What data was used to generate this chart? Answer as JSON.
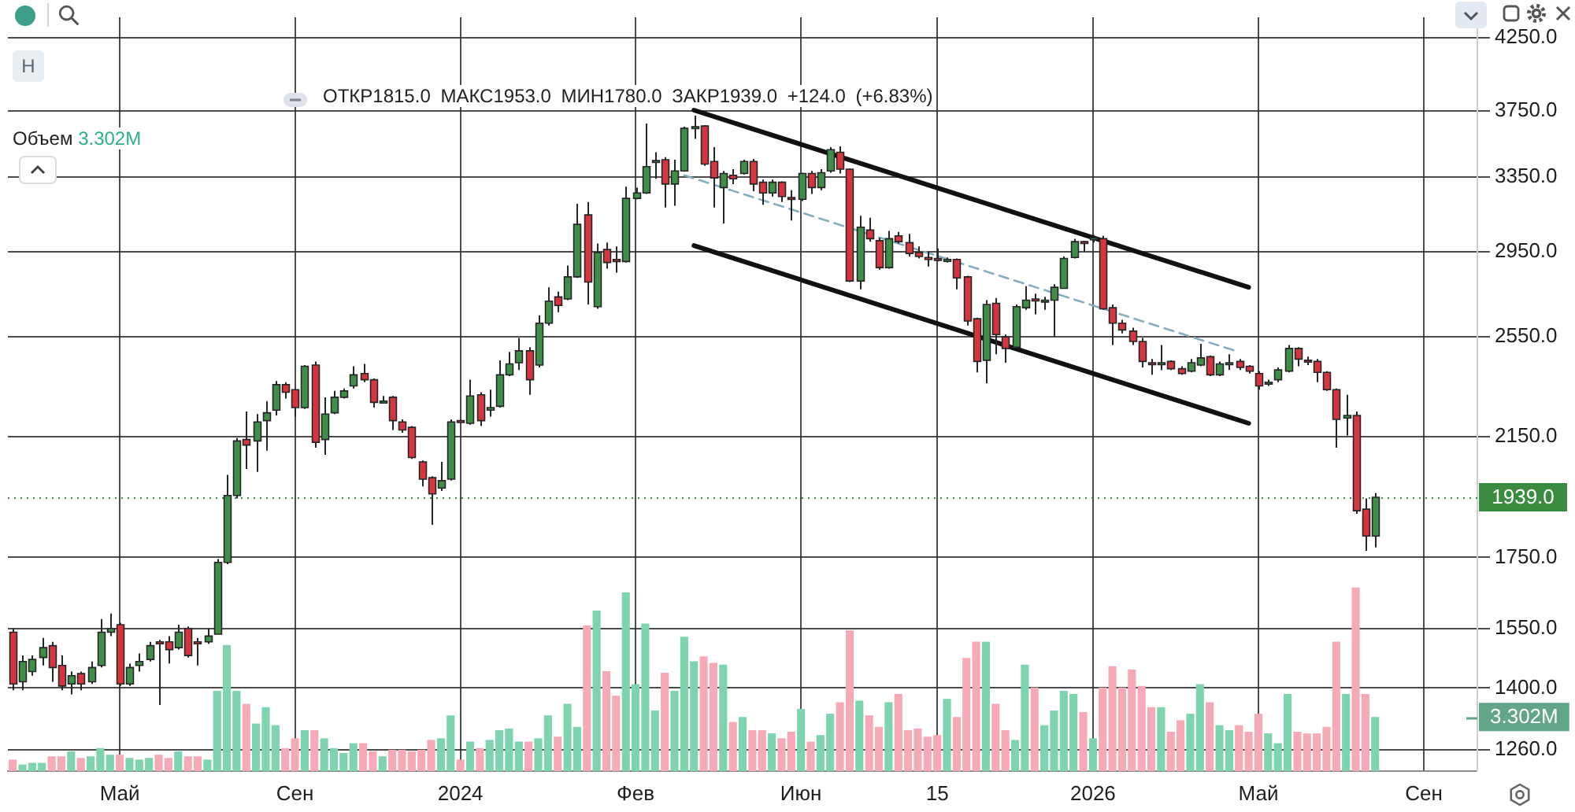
{
  "chart_data": {
    "type": "candlestick",
    "annotations": [
      "H",
      "ОТКР1815.0 МАКС1953.0 МИН1780.0 ЗАКР1939.0 +124.0 (+6.83%)",
      "Объем 3.302M"
    ],
    "categories": [
      null,
      null,
      null,
      null,
      null,
      null,
      null,
      null,
      null,
      null,
      null,
      "Май",
      null,
      null,
      null,
      null,
      null,
      null,
      null,
      null,
      null,
      null,
      null,
      null,
      null,
      null,
      null,
      null,
      null,
      "Сен",
      null,
      null,
      null,
      null,
      null,
      null,
      null,
      null,
      null,
      null,
      null,
      null,
      null,
      null,
      null,
      null,
      "2024",
      null,
      null,
      null,
      null,
      null,
      null,
      null,
      null,
      null,
      null,
      null,
      null,
      null,
      null,
      null,
      null,
      null,
      "Фев",
      null,
      null,
      null,
      null,
      null,
      null,
      null,
      null,
      null,
      null,
      null,
      null,
      null,
      null,
      null,
      null,
      "Июн",
      null,
      null,
      null,
      null,
      null,
      null,
      null,
      null,
      null,
      null,
      null,
      null,
      null,
      "15",
      null,
      null,
      null,
      null,
      null,
      null,
      null,
      null,
      null,
      null,
      null,
      null,
      null,
      null,
      null,
      "2026",
      null,
      null,
      null,
      null,
      null,
      null,
      null,
      null,
      null,
      null,
      null,
      null,
      null,
      null,
      null,
      null,
      "Май",
      null,
      null,
      null,
      null,
      null,
      null,
      null,
      null,
      null,
      null,
      null,
      null,
      null,
      null,
      null,
      null,
      "Сен",
      null,
      null,
      null,
      null,
      null
    ],
    "ohlc": [
      [
        1540,
        1550,
        1395,
        1410
      ],
      [
        1415,
        1480,
        1395,
        1465
      ],
      [
        1440,
        1480,
        1430,
        1470
      ],
      [
        1475,
        1525,
        1455,
        1500
      ],
      [
        1505,
        1515,
        1415,
        1450
      ],
      [
        1455,
        1480,
        1395,
        1405
      ],
      [
        1410,
        1440,
        1385,
        1430
      ],
      [
        1435,
        1440,
        1395,
        1410
      ],
      [
        1415,
        1465,
        1410,
        1450
      ],
      [
        1455,
        1575,
        1450,
        1540
      ],
      [
        1540,
        1590,
        1530,
        1550
      ],
      [
        1560,
        1565,
        1405,
        1410
      ],
      [
        1410,
        1460,
        1405,
        1450
      ],
      [
        1455,
        1485,
        1440,
        1465
      ],
      [
        1470,
        1515,
        1465,
        1505
      ],
      [
        1515,
        1520,
        1360,
        1510
      ],
      [
        1515,
        1530,
        1460,
        1495
      ],
      [
        1500,
        1560,
        1495,
        1540
      ],
      [
        1550,
        1555,
        1475,
        1480
      ],
      [
        1515,
        1525,
        1455,
        1510
      ],
      [
        1515,
        1550,
        1510,
        1530
      ],
      [
        1535,
        1745,
        1535,
        1735
      ],
      [
        1735,
        2015,
        1730,
        1945
      ],
      [
        1945,
        2145,
        1935,
        2135
      ],
      [
        2140,
        2245,
        2035,
        2120
      ],
      [
        2135,
        2235,
        2025,
        2205
      ],
      [
        2210,
        2285,
        2100,
        2240
      ],
      [
        2250,
        2365,
        2230,
        2350
      ],
      [
        2350,
        2360,
        2295,
        2320
      ],
      [
        2330,
        2335,
        2225,
        2260
      ],
      [
        2260,
        2430,
        2255,
        2425
      ],
      [
        2430,
        2445,
        2110,
        2130
      ],
      [
        2140,
        2300,
        2085,
        2235
      ],
      [
        2240,
        2325,
        2235,
        2300
      ],
      [
        2300,
        2335,
        2295,
        2325
      ],
      [
        2345,
        2425,
        2335,
        2390
      ],
      [
        2395,
        2435,
        2360,
        2370
      ],
      [
        2370,
        2375,
        2260,
        2280
      ],
      [
        2280,
        2305,
        2275,
        2285
      ],
      [
        2300,
        2305,
        2175,
        2210
      ],
      [
        2205,
        2215,
        2165,
        2175
      ],
      [
        2185,
        2190,
        2070,
        2075
      ],
      [
        2060,
        2065,
        1975,
        2000
      ],
      [
        2005,
        2010,
        1850,
        1950
      ],
      [
        1970,
        2060,
        1960,
        1995
      ],
      [
        2000,
        2215,
        1995,
        2205
      ],
      [
        2210,
        2215,
        2205,
        2205
      ],
      [
        2200,
        2370,
        2195,
        2305
      ],
      [
        2310,
        2320,
        2190,
        2210
      ],
      [
        2250,
        2330,
        2225,
        2260
      ],
      [
        2265,
        2450,
        2260,
        2390
      ],
      [
        2390,
        2485,
        2385,
        2435
      ],
      [
        2440,
        2545,
        2410,
        2490
      ],
      [
        2490,
        2505,
        2310,
        2370
      ],
      [
        2430,
        2645,
        2420,
        2610
      ],
      [
        2610,
        2775,
        2600,
        2710
      ],
      [
        2730,
        2755,
        2660,
        2690
      ],
      [
        2720,
        2880,
        2715,
        2825
      ],
      [
        2825,
        3200,
        2820,
        3090
      ],
      [
        3140,
        3210,
        2695,
        2800
      ],
      [
        2685,
        2990,
        2675,
        2945
      ],
      [
        2960,
        2995,
        2865,
        2895
      ],
      [
        2910,
        2975,
        2845,
        2900
      ],
      [
        2900,
        3295,
        2895,
        3230
      ],
      [
        3230,
        3290,
        3225,
        3260
      ],
      [
        3260,
        3670,
        3255,
        3410
      ],
      [
        3435,
        3495,
        3340,
        3445
      ],
      [
        3450,
        3465,
        3180,
        3310
      ],
      [
        3310,
        3450,
        3190,
        3385
      ],
      [
        3385,
        3650,
        3380,
        3640
      ],
      [
        3645,
        3720,
        3575,
        3650
      ],
      [
        3655,
        3660,
        3415,
        3425
      ],
      [
        3440,
        3525,
        3180,
        3345
      ],
      [
        3290,
        3385,
        3095,
        3370
      ],
      [
        3360,
        3395,
        3310,
        3340
      ],
      [
        3370,
        3450,
        3365,
        3440
      ],
      [
        3440,
        3455,
        3270,
        3310
      ],
      [
        3320,
        3335,
        3195,
        3260
      ],
      [
        3260,
        3335,
        3240,
        3320
      ],
      [
        3320,
        3325,
        3210,
        3240
      ],
      [
        3235,
        3275,
        3110,
        3225
      ],
      [
        3225,
        3375,
        3215,
        3370
      ],
      [
        3370,
        3385,
        3255,
        3290
      ],
      [
        3290,
        3395,
        3275,
        3375
      ],
      [
        3385,
        3525,
        3375,
        3510
      ],
      [
        3495,
        3530,
        3370,
        3395
      ],
      [
        3395,
        3400,
        2800,
        2805
      ],
      [
        2805,
        3135,
        2765,
        3075
      ],
      [
        3060,
        3125,
        3000,
        3015
      ],
      [
        3005,
        3020,
        2860,
        2870
      ],
      [
        2870,
        3055,
        2865,
        3015
      ],
      [
        3030,
        3050,
        2990,
        3000
      ],
      [
        2995,
        3040,
        2925,
        2940
      ],
      [
        2945,
        2975,
        2915,
        2925
      ],
      [
        2920,
        2950,
        2875,
        2910
      ],
      [
        2915,
        2965,
        2900,
        2910
      ],
      [
        2905,
        2920,
        2895,
        2910
      ],
      [
        2910,
        2915,
        2765,
        2820
      ],
      [
        2825,
        2830,
        2600,
        2620
      ],
      [
        2630,
        2635,
        2400,
        2445
      ],
      [
        2450,
        2715,
        2355,
        2695
      ],
      [
        2700,
        2725,
        2475,
        2560
      ],
      [
        2550,
        2560,
        2440,
        2500
      ],
      [
        2505,
        2695,
        2500,
        2685
      ],
      [
        2680,
        2780,
        2670,
        2715
      ],
      [
        2720,
        2745,
        2650,
        2715
      ],
      [
        2710,
        2730,
        2670,
        2715
      ],
      [
        2715,
        2790,
        2550,
        2775
      ],
      [
        2770,
        2925,
        2770,
        2915
      ],
      [
        2920,
        3015,
        2915,
        3000
      ],
      [
        3000,
        3005,
        2950,
        2995
      ],
      [
        3010,
        3035,
        2995,
        3020
      ],
      [
        3015,
        3030,
        2670,
        2675
      ],
      [
        2680,
        2695,
        2515,
        2610
      ],
      [
        2610,
        2625,
        2565,
        2580
      ],
      [
        2575,
        2590,
        2515,
        2530
      ],
      [
        2530,
        2545,
        2420,
        2445
      ],
      [
        2440,
        2455,
        2390,
        2435
      ],
      [
        2435,
        2515,
        2410,
        2440
      ],
      [
        2445,
        2450,
        2410,
        2415
      ],
      [
        2415,
        2425,
        2390,
        2395
      ],
      [
        2405,
        2455,
        2400,
        2440
      ],
      [
        2430,
        2520,
        2425,
        2460
      ],
      [
        2465,
        2470,
        2385,
        2390
      ],
      [
        2390,
        2445,
        2385,
        2435
      ],
      [
        2435,
        2475,
        2410,
        2440
      ],
      [
        2445,
        2455,
        2410,
        2420
      ],
      [
        2425,
        2430,
        2395,
        2405
      ],
      [
        2395,
        2405,
        2330,
        2345
      ],
      [
        2355,
        2370,
        2345,
        2360
      ],
      [
        2370,
        2420,
        2360,
        2410
      ],
      [
        2405,
        2515,
        2400,
        2500
      ],
      [
        2500,
        2505,
        2425,
        2455
      ],
      [
        2450,
        2465,
        2430,
        2445
      ],
      [
        2445,
        2455,
        2360,
        2400
      ],
      [
        2400,
        2405,
        2325,
        2330
      ],
      [
        2330,
        2335,
        2110,
        2215
      ],
      [
        2220,
        2310,
        2155,
        2230
      ],
      [
        2230,
        2245,
        1885,
        1895
      ],
      [
        1900,
        1935,
        1770,
        1815
      ],
      [
        1815,
        1953,
        1780,
        1939
      ],
      null,
      null,
      null,
      null,
      null,
      null,
      null,
      null,
      null,
      null
    ],
    "colors": [
      "#d5353f",
      "#3f8d48",
      "#3f8d48",
      "#3f8d48",
      "#d5353f",
      "#d5353f",
      "#3f8d48",
      "#d5353f",
      "#3f8d48",
      "#3f8d48",
      "#3f8d48",
      "#d5353f",
      "#3f8d48",
      "#3f8d48",
      "#3f8d48",
      "#d5353f",
      "#d5353f",
      "#3f8d48",
      "#d5353f",
      "#d5353f",
      "#3f8d48",
      "#3f8d48",
      "#3f8d48",
      "#3f8d48",
      "#d5353f",
      "#3f8d48",
      "#3f8d48",
      "#3f8d48",
      "#d5353f",
      "#d5353f",
      "#3f8d48",
      "#d5353f",
      "#3f8d48",
      "#3f8d48",
      "#3f8d48",
      "#3f8d48",
      "#d5353f",
      "#d5353f",
      "#3f8d48",
      "#d5353f",
      "#d5353f",
      "#d5353f",
      "#d5353f",
      "#d5353f",
      "#3f8d48",
      "#3f8d48",
      "#d5353f",
      "#3f8d48",
      "#d5353f",
      "#3f8d48",
      "#3f8d48",
      "#3f8d48",
      "#3f8d48",
      "#d5353f",
      "#3f8d48",
      "#3f8d48",
      "#d5353f",
      "#3f8d48",
      "#3f8d48",
      "#d5353f",
      "#3f8d48",
      "#d5353f",
      "#d5353f",
      "#3f8d48",
      "#3f8d48",
      "#3f8d48",
      "#3f8d48",
      "#d5353f",
      "#3f8d48",
      "#3f8d48",
      "#3f8d48",
      "#d5353f",
      "#d5353f",
      "#3f8d48",
      "#d5353f",
      "#3f8d48",
      "#d5353f",
      "#d5353f",
      "#3f8d48",
      "#d5353f",
      "#d5353f",
      "#3f8d48",
      "#d5353f",
      "#3f8d48",
      "#3f8d48",
      "#d5353f",
      "#d5353f",
      "#3f8d48",
      "#d5353f",
      "#d5353f",
      "#3f8d48",
      "#d5353f",
      "#d5353f",
      "#d5353f",
      "#d5353f",
      "#d5353f",
      "#3f8d48",
      "#d5353f",
      "#d5353f",
      "#d5353f",
      "#3f8d48",
      "#d5353f",
      "#d5353f",
      "#3f8d48",
      "#3f8d48",
      "#d5353f",
      "#3f8d48",
      "#3f8d48",
      "#3f8d48",
      "#3f8d48",
      "#d5353f",
      "#3f8d48",
      "#d5353f",
      "#d5353f",
      "#d5353f",
      "#d5353f",
      "#d5353f",
      "#d5353f",
      "#3f8d48",
      "#d5353f",
      "#d5353f",
      "#3f8d48",
      "#3f8d48",
      "#d5353f",
      "#3f8d48",
      "#3f8d48",
      "#d5353f",
      "#d5353f",
      "#d5353f",
      "#3f8d48",
      "#3f8d48",
      "#3f8d48",
      "#d5353f",
      "#d5353f",
      "#d5353f",
      "#d5353f",
      "#d5353f",
      "#3f8d48",
      "#d5353f",
      "#d5353f",
      "#3f8d48",
      null,
      null,
      null,
      null,
      null,
      null,
      null,
      null,
      null,
      null
    ],
    "series": [
      {
        "type": "bar",
        "axis": "y2",
        "values": [
          0.7,
          0.4,
          0.5,
          0.5,
          0.9,
          0.9,
          1.2,
          0.8,
          0.9,
          1.4,
          1.0,
          1.0,
          0.8,
          0.7,
          0.8,
          1.0,
          0.8,
          1.2,
          0.9,
          0.9,
          0.7,
          4.9,
          7.7,
          4.9,
          4.1,
          2.9,
          3.9,
          2.8,
          1.4,
          2.0,
          2.5,
          2.5,
          2.0,
          1.4,
          1.1,
          1.7,
          1.7,
          1.2,
          0.9,
          1.3,
          1.3,
          1.2,
          1.3,
          1.9,
          2.0,
          3.4,
          0.7,
          1.8,
          1.4,
          1.9,
          2.5,
          2.6,
          1.8,
          1.8,
          2.0,
          3.4,
          2.1,
          4.1,
          2.7,
          8.9,
          9.8,
          6.1,
          4.6,
          10.9,
          5.3,
          9.0,
          3.7,
          6.0,
          4.9,
          8.2,
          6.7,
          7.0,
          6.6,
          6.5,
          3.0,
          3.3,
          2.5,
          2.5,
          2.3,
          2.0,
          2.4,
          3.8,
          1.8,
          2.2,
          3.5,
          4.2,
          8.6,
          4.3,
          3.4,
          2.7,
          4.2,
          4.7,
          2.5,
          2.6,
          2.1,
          2.2,
          4.4,
          3.3,
          6.9,
          7.9,
          7.9,
          4.1,
          2.5,
          1.9,
          6.5,
          5.1,
          2.8,
          3.7,
          4.9,
          4.7,
          3.6,
          2.0,
          5.1,
          6.4,
          5.1,
          6.2,
          5.2,
          3.9,
          3.9,
          2.4,
          3.1,
          3.5,
          5.3,
          4.2,
          2.8,
          2.5,
          2.8,
          2.4,
          3.5,
          2.3,
          1.7,
          4.7,
          2.4,
          2.3,
          2.3,
          2.7,
          7.9,
          4.7,
          11.2,
          4.7,
          3.302,
          null,
          null,
          null,
          null,
          null,
          null,
          null,
          null,
          null,
          null
        ],
        "colors": [
          "#f6aab5",
          "#7dd4ae",
          "#7dd4ae",
          "#7dd4ae",
          "#f6aab5",
          "#f6aab5",
          "#7dd4ae",
          "#f6aab5",
          "#7dd4ae",
          "#7dd4ae",
          "#7dd4ae",
          "#f6aab5",
          "#7dd4ae",
          "#7dd4ae",
          "#7dd4ae",
          "#f6aab5",
          "#f6aab5",
          "#7dd4ae",
          "#f6aab5",
          "#f6aab5",
          "#7dd4ae",
          "#7dd4ae",
          "#7dd4ae",
          "#7dd4ae",
          "#f6aab5",
          "#7dd4ae",
          "#7dd4ae",
          "#7dd4ae",
          "#f6aab5",
          "#f6aab5",
          "#7dd4ae",
          "#f6aab5",
          "#7dd4ae",
          "#7dd4ae",
          "#7dd4ae",
          "#7dd4ae",
          "#f6aab5",
          "#f6aab5",
          "#7dd4ae",
          "#f6aab5",
          "#f6aab5",
          "#f6aab5",
          "#f6aab5",
          "#f6aab5",
          "#7dd4ae",
          "#7dd4ae",
          "#f6aab5",
          "#7dd4ae",
          "#f6aab5",
          "#7dd4ae",
          "#7dd4ae",
          "#7dd4ae",
          "#7dd4ae",
          "#f6aab5",
          "#7dd4ae",
          "#7dd4ae",
          "#f6aab5",
          "#7dd4ae",
          "#7dd4ae",
          "#f6aab5",
          "#7dd4ae",
          "#f6aab5",
          "#f6aab5",
          "#7dd4ae",
          "#7dd4ae",
          "#7dd4ae",
          "#7dd4ae",
          "#f6aab5",
          "#7dd4ae",
          "#7dd4ae",
          "#7dd4ae",
          "#f6aab5",
          "#f6aab5",
          "#7dd4ae",
          "#f6aab5",
          "#7dd4ae",
          "#f6aab5",
          "#f6aab5",
          "#7dd4ae",
          "#f6aab5",
          "#f6aab5",
          "#7dd4ae",
          "#f6aab5",
          "#7dd4ae",
          "#7dd4ae",
          "#f6aab5",
          "#f6aab5",
          "#7dd4ae",
          "#f6aab5",
          "#f6aab5",
          "#7dd4ae",
          "#f6aab5",
          "#f6aab5",
          "#f6aab5",
          "#f6aab5",
          "#f6aab5",
          "#7dd4ae",
          "#f6aab5",
          "#f6aab5",
          "#f6aab5",
          "#7dd4ae",
          "#f6aab5",
          "#f6aab5",
          "#7dd4ae",
          "#7dd4ae",
          "#f6aab5",
          "#7dd4ae",
          "#7dd4ae",
          "#7dd4ae",
          "#7dd4ae",
          "#f6aab5",
          "#7dd4ae",
          "#f6aab5",
          "#f6aab5",
          "#f6aab5",
          "#f6aab5",
          "#f6aab5",
          "#f6aab5",
          "#7dd4ae",
          "#f6aab5",
          "#f6aab5",
          "#7dd4ae",
          "#7dd4ae",
          "#f6aab5",
          "#7dd4ae",
          "#7dd4ae",
          "#f6aab5",
          "#f6aab5",
          "#f6aab5",
          "#7dd4ae",
          "#7dd4ae",
          "#7dd4ae",
          "#f6aab5",
          "#f6aab5",
          "#f6aab5",
          "#f6aab5",
          "#f6aab5",
          "#7dd4ae",
          "#f6aab5",
          "#f6aab5",
          "#7dd4ae",
          null,
          null,
          null,
          null,
          null,
          null,
          null,
          null,
          null,
          null
        ]
      },
      {
        "type": "line",
        "color": "#111111",
        "line_style": "solid",
        "values": [
          null,
          null,
          null,
          null,
          null,
          null,
          null,
          null,
          null,
          null,
          null,
          null,
          null,
          null,
          null,
          null,
          null,
          null,
          null,
          null,
          null,
          null,
          null,
          null,
          null,
          null,
          null,
          null,
          null,
          null,
          null,
          null,
          null,
          null,
          null,
          null,
          null,
          null,
          null,
          null,
          null,
          null,
          null,
          null,
          null,
          null,
          null,
          null,
          null,
          null,
          null,
          null,
          null,
          null,
          null,
          null,
          null,
          null,
          null,
          null,
          null,
          null,
          null,
          null,
          null,
          null,
          null,
          null,
          null,
          null,
          3755,
          null,
          null,
          null,
          null,
          null,
          null,
          null,
          null,
          null,
          null,
          null,
          null,
          null,
          null,
          null,
          null,
          null,
          null,
          null,
          null,
          null,
          null,
          null,
          null,
          null,
          null,
          null,
          null,
          null,
          null,
          null,
          null,
          null,
          null,
          null,
          null,
          null,
          null,
          null,
          null,
          null,
          null,
          null,
          null,
          null,
          null,
          null,
          null,
          null,
          null,
          null,
          null,
          null,
          null,
          null,
          null,
          2775,
          null,
          null,
          null,
          null,
          null,
          null,
          null,
          null,
          null,
          null,
          null,
          null,
          null,
          null,
          null,
          null,
          null,
          null,
          null,
          null,
          null,
          null,
          null
        ]
      },
      {
        "type": "line",
        "color": "#111111",
        "line_style": "solid",
        "values": [
          null,
          null,
          null,
          null,
          null,
          null,
          null,
          null,
          null,
          null,
          null,
          null,
          null,
          null,
          null,
          null,
          null,
          null,
          null,
          null,
          null,
          null,
          null,
          null,
          null,
          null,
          null,
          null,
          null,
          null,
          null,
          null,
          null,
          null,
          null,
          null,
          null,
          null,
          null,
          null,
          null,
          null,
          null,
          null,
          null,
          null,
          null,
          null,
          null,
          null,
          null,
          null,
          null,
          null,
          null,
          null,
          null,
          null,
          null,
          null,
          null,
          null,
          null,
          null,
          null,
          null,
          null,
          null,
          null,
          null,
          2980,
          null,
          null,
          null,
          null,
          null,
          null,
          null,
          null,
          null,
          null,
          null,
          null,
          null,
          null,
          null,
          null,
          null,
          null,
          null,
          null,
          null,
          null,
          null,
          null,
          null,
          null,
          null,
          null,
          null,
          null,
          null,
          null,
          null,
          null,
          null,
          null,
          null,
          null,
          null,
          null,
          null,
          null,
          null,
          null,
          null,
          null,
          null,
          null,
          null,
          null,
          null,
          null,
          null,
          null,
          null,
          null,
          2200,
          null,
          null,
          null,
          null,
          null,
          null,
          null,
          null,
          null,
          null,
          null,
          null,
          null,
          null,
          null,
          null,
          null,
          null,
          null,
          null,
          null,
          null,
          null
        ]
      },
      {
        "type": "line",
        "color": "#86adbd",
        "line_style": "dashed",
        "values": [
          null,
          null,
          null,
          null,
          null,
          null,
          null,
          null,
          null,
          null,
          null,
          null,
          null,
          null,
          null,
          null,
          null,
          null,
          null,
          null,
          null,
          null,
          null,
          null,
          null,
          null,
          null,
          null,
          null,
          null,
          null,
          null,
          null,
          null,
          null,
          null,
          null,
          null,
          null,
          null,
          null,
          null,
          null,
          null,
          null,
          null,
          null,
          null,
          null,
          null,
          null,
          null,
          null,
          null,
          null,
          null,
          null,
          null,
          null,
          null,
          null,
          null,
          null,
          null,
          null,
          null,
          null,
          null,
          null,
          3360,
          null,
          null,
          null,
          null,
          null,
          null,
          null,
          null,
          null,
          null,
          null,
          null,
          null,
          null,
          null,
          null,
          null,
          null,
          null,
          null,
          null,
          null,
          null,
          null,
          null,
          null,
          null,
          null,
          null,
          null,
          null,
          null,
          null,
          null,
          null,
          null,
          null,
          null,
          null,
          null,
          null,
          null,
          null,
          null,
          null,
          null,
          null,
          null,
          null,
          null,
          null,
          null,
          null,
          null,
          null,
          null,
          2485,
          null,
          null,
          null,
          null,
          null,
          null,
          null,
          null,
          null,
          null,
          null,
          null,
          null,
          null,
          null,
          null,
          null,
          null,
          null,
          null,
          null,
          null,
          null,
          null
        ]
      }
    ],
    "log": true,
    "ylim": [
      1215,
      4400
    ],
    "yticks": [
      {
        "value": 1260,
        "label": "1260.0"
      },
      {
        "value": 1400,
        "label": "1400.0"
      },
      {
        "value": 1550,
        "label": "1550.0"
      },
      {
        "value": 1750,
        "label": "1750.0"
      },
      {
        "value": 2150,
        "label": "2150.0"
      },
      {
        "value": 2550,
        "label": "2550.0"
      },
      {
        "value": 2950,
        "label": "2950.0"
      },
      {
        "value": 3350,
        "label": "3350.0"
      },
      {
        "value": 3750,
        "label": "3750.0"
      },
      {
        "value": 4250,
        "label": "4250.0"
      }
    ],
    "y2lim": [
      0,
      46
    ],
    "y2ticks": [
      {
        "value": 3.302,
        "label": "3.302M"
      }
    ],
    "ref_lines": [
      {
        "axis": "y",
        "value": 1939,
        "label": "1939.0",
        "color": "#3b8c40",
        "line_style": "dotted"
      }
    ],
    "grid": true
  }
}
